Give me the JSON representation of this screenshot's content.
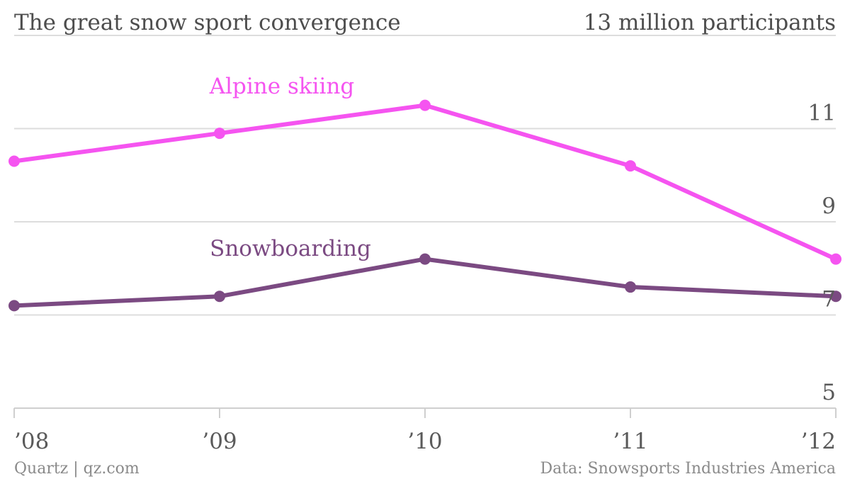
{
  "chart_data": {
    "type": "line",
    "title": "The great snow sport convergence",
    "unit_label": "13 million participants",
    "categories": [
      "’08",
      "’09",
      "’10",
      "’11",
      "’12"
    ],
    "ylim": [
      5,
      13
    ],
    "yticks": [
      5,
      7,
      9,
      11
    ],
    "grid": true,
    "series": [
      {
        "name": "Alpine skiing",
        "color": "#f554f0",
        "values": [
          10.3,
          10.9,
          11.5,
          10.2,
          8.2
        ]
      },
      {
        "name": "Snowboarding",
        "color": "#7b4a82",
        "values": [
          7.2,
          7.4,
          8.2,
          7.6,
          7.4
        ]
      }
    ]
  },
  "footer": {
    "source_left": "Quartz | qz.com",
    "source_right": "Data: Snowsports Industries America"
  }
}
